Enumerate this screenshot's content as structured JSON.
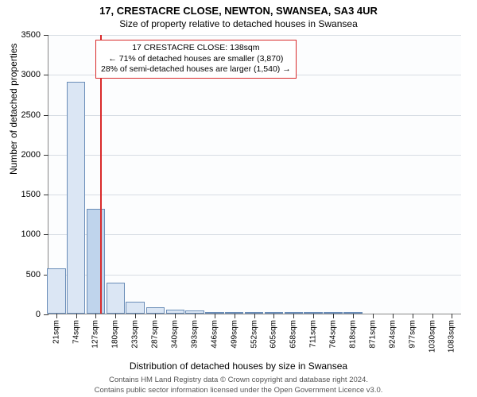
{
  "header": {
    "address": "17, CRESTACRE CLOSE, NEWTON, SWANSEA, SA3 4UR",
    "subtitle": "Size of property relative to detached houses in Swansea"
  },
  "axes": {
    "ylabel": "Number of detached properties",
    "xlabel": "Distribution of detached houses by size in Swansea"
  },
  "chart": {
    "type": "histogram",
    "ylim": [
      0,
      3500
    ],
    "yticks": [
      0,
      500,
      1000,
      1500,
      2000,
      2500,
      3000,
      3500
    ],
    "xticks_labels": [
      "21sqm",
      "74sqm",
      "127sqm",
      "180sqm",
      "233sqm",
      "287sqm",
      "340sqm",
      "393sqm",
      "446sqm",
      "499sqm",
      "552sqm",
      "605sqm",
      "658sqm",
      "711sqm",
      "764sqm",
      "818sqm",
      "871sqm",
      "924sqm",
      "977sqm",
      "1030sqm",
      "1083sqm"
    ],
    "bars": [
      {
        "x": 21,
        "count": 570,
        "color": "#dbe6f4"
      },
      {
        "x": 74,
        "count": 2900,
        "color": "#dbe6f4"
      },
      {
        "x": 127,
        "count": 1310,
        "color": "#bfd4ec"
      },
      {
        "x": 180,
        "count": 390,
        "color": "#dbe6f4"
      },
      {
        "x": 233,
        "count": 150,
        "color": "#dbe6f4"
      },
      {
        "x": 287,
        "count": 80,
        "color": "#dbe6f4"
      },
      {
        "x": 340,
        "count": 50,
        "color": "#dbe6f4"
      },
      {
        "x": 393,
        "count": 35,
        "color": "#dbe6f4"
      },
      {
        "x": 446,
        "count": 25,
        "color": "#dbe6f4"
      },
      {
        "x": 499,
        "count": 20,
        "color": "#dbe6f4"
      },
      {
        "x": 552,
        "count": 10,
        "color": "#dbe6f4"
      },
      {
        "x": 605,
        "count": 8,
        "color": "#dbe6f4"
      },
      {
        "x": 658,
        "count": 6,
        "color": "#dbe6f4"
      },
      {
        "x": 711,
        "count": 4,
        "color": "#dbe6f4"
      },
      {
        "x": 764,
        "count": 4,
        "color": "#dbe6f4"
      },
      {
        "x": 818,
        "count": 4,
        "color": "#dbe6f4"
      },
      {
        "x": 871,
        "count": 0,
        "color": "#dbe6f4"
      },
      {
        "x": 924,
        "count": 0,
        "color": "#dbe6f4"
      },
      {
        "x": 977,
        "count": 0,
        "color": "#dbe6f4"
      },
      {
        "x": 1030,
        "count": 0,
        "color": "#dbe6f4"
      },
      {
        "x": 1083,
        "count": 0,
        "color": "#dbe6f4"
      }
    ],
    "x_range": [
      0,
      1110
    ],
    "bar_width_units": 50,
    "bar_border_color": "#6a8db8",
    "grid_color": "#d7dde4",
    "background_color": "#fcfdfe",
    "marker": {
      "value": 138,
      "color": "#d92a2a"
    }
  },
  "info_box": {
    "line1": "17 CRESTACRE CLOSE: 138sqm",
    "line2": "← 71% of detached houses are smaller (3,870)",
    "line3": "28% of semi-detached houses are larger (1,540) →"
  },
  "footer": {
    "line1": "Contains HM Land Registry data © Crown copyright and database right 2024.",
    "line2": "Contains public sector information licensed under the Open Government Licence v3.0."
  }
}
